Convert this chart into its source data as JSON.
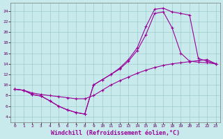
{
  "background_color": "#c8eaec",
  "grid_color": "#a0cccc",
  "line_color": "#990099",
  "marker_color": "#990099",
  "xlabel": "Windchill (Refroidissement éolien,°C)",
  "xlabel_fontsize": 6,
  "ylabel_ticks": [
    4,
    6,
    8,
    10,
    12,
    14,
    16,
    18,
    20,
    22,
    24
  ],
  "xlabel_ticks": [
    0,
    1,
    2,
    3,
    4,
    5,
    6,
    7,
    8,
    9,
    10,
    11,
    12,
    13,
    14,
    15,
    16,
    17,
    18,
    19,
    20,
    21,
    22,
    23
  ],
  "xlim": [
    -0.5,
    23.5
  ],
  "ylim": [
    3.0,
    25.5
  ],
  "curve1_x": [
    0,
    1,
    2,
    3,
    4,
    5,
    6,
    7,
    8,
    9,
    10,
    11,
    12,
    13,
    14,
    15,
    16,
    17,
    18,
    19,
    20,
    21,
    22,
    23
  ],
  "curve1_y": [
    9.2,
    9.0,
    8.2,
    7.9,
    7.0,
    6.0,
    5.3,
    4.8,
    4.5,
    10.0,
    11.0,
    12.0,
    13.2,
    14.8,
    17.0,
    21.0,
    24.3,
    24.5,
    23.8,
    23.5,
    23.2,
    15.0,
    14.5,
    14.0
  ],
  "curve2_x": [
    0,
    1,
    2,
    3,
    4,
    5,
    6,
    7,
    8,
    9,
    10,
    11,
    12,
    13,
    14,
    15,
    16,
    17,
    18,
    19,
    20,
    21,
    22,
    23
  ],
  "curve2_y": [
    9.2,
    9.0,
    8.2,
    7.9,
    7.0,
    6.0,
    5.3,
    4.8,
    4.5,
    10.0,
    11.0,
    12.0,
    13.0,
    14.5,
    16.5,
    19.5,
    23.5,
    23.8,
    20.8,
    16.0,
    14.5,
    14.3,
    14.2,
    14.0
  ],
  "curve3_x": [
    0,
    1,
    2,
    3,
    4,
    5,
    6,
    7,
    8,
    9,
    10,
    11,
    12,
    13,
    14,
    15,
    16,
    17,
    18,
    19,
    20,
    21,
    22,
    23
  ],
  "curve3_y": [
    9.2,
    9.0,
    8.5,
    8.2,
    8.0,
    7.8,
    7.6,
    7.4,
    7.4,
    8.0,
    9.0,
    10.0,
    10.8,
    11.5,
    12.2,
    12.8,
    13.3,
    13.7,
    14.0,
    14.2,
    14.4,
    14.6,
    14.8,
    14.0
  ]
}
